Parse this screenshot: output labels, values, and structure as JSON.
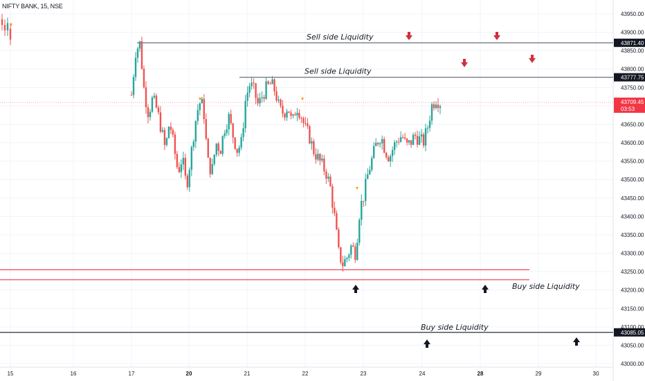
{
  "header": {
    "symbol": "NIFTY BANK, 15, NSE"
  },
  "colors": {
    "up": "#26a69a",
    "down": "#ef5350",
    "resistance": "#787b86",
    "support_red": "#f23645",
    "support_black": "#131722",
    "arrow_red": "#d12f3f",
    "arrow_black": "#131722",
    "last_price": "#f23645"
  },
  "chart_data": {
    "type": "candlestick",
    "title": "",
    "xlabel": "",
    "ylabel": "",
    "ylim": [
      42985,
      44000
    ],
    "y_ticks": [
      "43000.00",
      "43050.00",
      "43100.00",
      "43150.00",
      "43200.00",
      "43250.00",
      "43300.00",
      "43350.00",
      "43400.00",
      "43450.00",
      "43500.00",
      "43550.00",
      "43600.00",
      "43650.00",
      "43700.00",
      "43750.00",
      "43800.00",
      "43850.00",
      "43900.00",
      "43950.00"
    ],
    "x_ticks": [
      "15",
      "16",
      "17",
      "20",
      "21",
      "22",
      "23",
      "24",
      "28",
      "29",
      "30"
    ],
    "x_ticks_bold": [
      "20",
      "28"
    ],
    "grid": true,
    "levels": [
      {
        "label": "Sell side Liquidity",
        "value": 43871.4,
        "value_text": "43871.40",
        "style": "resistance"
      },
      {
        "label": "Sell side Liquidity",
        "value": 43777.75,
        "value_text": "43777.75",
        "style": "resistance"
      },
      {
        "label": "",
        "value": 43255,
        "style": "support_red"
      },
      {
        "label": "",
        "value": 43228,
        "style": "support_red"
      },
      {
        "label": "Buy side Liquidity",
        "value": 43085.05,
        "value_text": "43085.05",
        "style": "support_black"
      }
    ],
    "last_price": {
      "value_text": "43709.45",
      "countdown": "03:53",
      "value": 43709.45
    },
    "segments": [
      {
        "index_start": 0,
        "count": 4,
        "anchors": [
          43930,
          43920,
          43900,
          43880
        ]
      },
      {
        "index_start": 4,
        "count": 240,
        "anchors": [
          43730,
          43850,
          43870,
          43740,
          43680,
          43720,
          43690,
          43640,
          43580,
          43660,
          43590,
          43520,
          43560,
          43480,
          43560,
          43650,
          43710,
          43700,
          43550,
          43520,
          43600,
          43580,
          43640,
          43670,
          43620,
          43580,
          43600,
          43720,
          43760,
          43740,
          43700,
          43730,
          43750,
          43760,
          43740,
          43690,
          43680,
          43700,
          43650,
          43700,
          43680,
          43640,
          43620,
          43580,
          43560,
          43540,
          43520,
          43480,
          43400,
          43300,
          43270,
          43290,
          43320,
          43300,
          43420,
          43460,
          43520,
          43560,
          43600,
          43620,
          43580,
          43560,
          43590,
          43610,
          43620,
          43590,
          43600,
          43620,
          43610,
          43600,
          43640,
          43700,
          43720,
          43709
        ]
      }
    ],
    "annotations": [
      {
        "text": "Sell side Liquidity",
        "level": 43871.4
      },
      {
        "text": "Sell side Liquidity",
        "level": 43777.75
      },
      {
        "text": "Buy side Liquidity",
        "level": 43228
      },
      {
        "text": "Buy side Liquidity",
        "level": 43085.05
      }
    ],
    "arrows": [
      {
        "direction": "down",
        "color": "red",
        "x_frac": 0.6555
      },
      {
        "direction": "down",
        "color": "red",
        "x_frac": 0.7962
      },
      {
        "direction": "down",
        "color": "red",
        "x_frac": 0.7448
      },
      {
        "direction": "down",
        "color": "red",
        "x_frac": 0.8549
      },
      {
        "direction": "up",
        "color": "black",
        "x_frac": 0.5706
      },
      {
        "direction": "up",
        "color": "black",
        "x_frac": 0.7812
      },
      {
        "direction": "up",
        "color": "black",
        "x_frac": 0.688
      },
      {
        "direction": "up",
        "color": "black",
        "x_frac": 0.928
      }
    ]
  }
}
